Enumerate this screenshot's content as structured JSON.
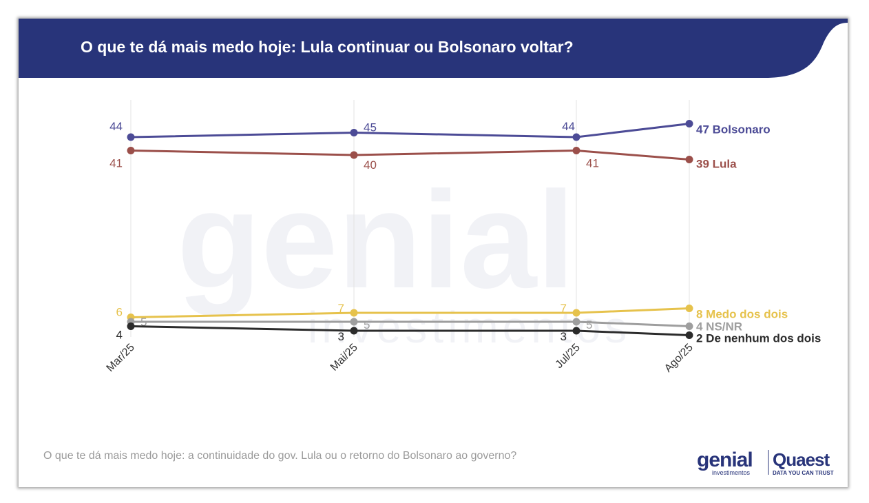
{
  "header": {
    "title": "O que te dá mais medo hoje: Lula continuar ou Bolsonaro voltar?"
  },
  "footnote": "O que te dá mais medo hoje: a continuidade do gov. Lula ou o retorno do Bolsonaro ao governo?",
  "branding": {
    "genial_logo": "genial",
    "genial_sub": "investimentos",
    "quaest_logo": "Quaest",
    "quaest_tagline": "DATA YOU CAN TRUST",
    "watermark": "genial investimentos"
  },
  "chart_data": {
    "type": "line",
    "title": "O que te dá mais medo hoje: Lula continuar ou Bolsonaro voltar?",
    "xlabel": "",
    "ylabel": "",
    "categories": [
      "Mar/25",
      "Mai/25",
      "Jul/25",
      "Ago/25"
    ],
    "ylim": [
      0,
      50
    ],
    "grid": "vertical",
    "legend": "end-of-line labels",
    "series": [
      {
        "name": "Bolsonaro",
        "values": [
          44,
          45,
          44,
          47
        ],
        "color": "#4c4b96"
      },
      {
        "name": "Lula",
        "values": [
          41,
          40,
          41,
          39
        ],
        "color": "#9b4f4a"
      },
      {
        "name": "Medo dos dois",
        "values": [
          6,
          7,
          7,
          8
        ],
        "color": "#e6c24c"
      },
      {
        "name": "NS/NR",
        "values": [
          5,
          5,
          5,
          4
        ],
        "color": "#9e9e9e"
      },
      {
        "name": "De nenhum dos dois",
        "values": [
          4,
          3,
          3,
          2
        ],
        "color": "#2b2b2b"
      }
    ]
  }
}
